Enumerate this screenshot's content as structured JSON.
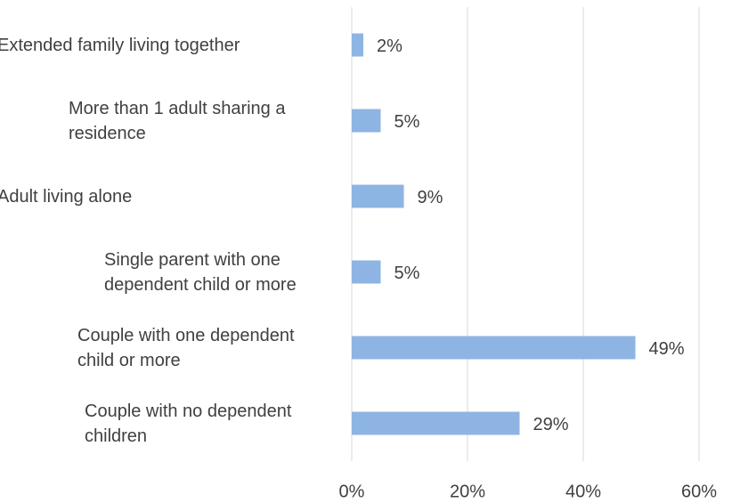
{
  "chart_data": {
    "type": "bar",
    "orientation": "horizontal",
    "categories": [
      "Extended family living together",
      "More than 1 adult sharing a residence",
      "Adult living alone",
      "Single parent with one dependent child or more",
      "Couple with one dependent child or more",
      "Couple with no dependent children"
    ],
    "values": [
      2,
      5,
      9,
      5,
      49,
      29
    ],
    "value_labels": [
      "2%",
      "5%",
      "9%",
      "5%",
      "49%",
      "29%"
    ],
    "color": "#8eb4e3",
    "xlim": [
      0,
      60
    ],
    "xticks": [
      {
        "value": 0,
        "label": "0%"
      },
      {
        "value": 20,
        "label": "20%"
      },
      {
        "value": 40,
        "label": "40%"
      },
      {
        "value": 60,
        "label": "60%"
      }
    ],
    "grid": true
  }
}
